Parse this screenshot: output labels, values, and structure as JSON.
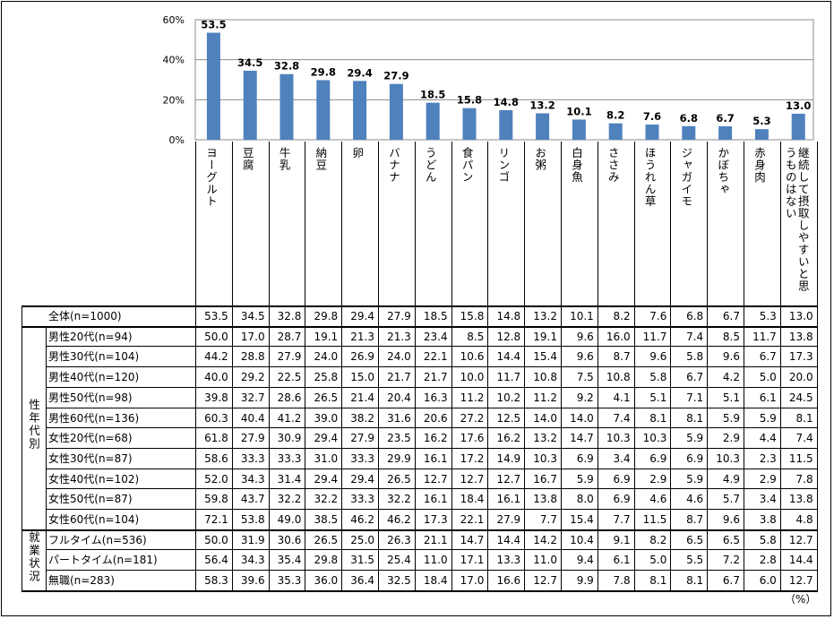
{
  "chart_data": {
    "type": "bar",
    "categories": [
      "ヨーグルト",
      "豆腐",
      "牛乳",
      "納豆",
      "卵",
      "バナナ",
      "うどん",
      "食パン",
      "リンゴ",
      "お粥",
      "白身魚",
      "ささみ",
      "ほうれん草",
      "ジャガイモ",
      "かぼちゃ",
      "赤身肉",
      "継続して摂取しやすいと思うものはない"
    ],
    "values": [
      53.5,
      34.5,
      32.8,
      29.8,
      29.4,
      27.9,
      18.5,
      15.8,
      14.8,
      13.2,
      10.1,
      8.2,
      7.6,
      6.8,
      6.7,
      5.3,
      13.0
    ],
    "value_labels": [
      "53.5",
      "34.5",
      "32.8",
      "29.8",
      "29.4",
      "27.9",
      "18.5",
      "15.8",
      "14.8",
      "13.2",
      "10.1",
      "8.2",
      "7.6",
      "6.8",
      "6.7",
      "5.3",
      "13.0"
    ],
    "yticks": [
      "0%",
      "20%",
      "40%",
      "60%"
    ],
    "ylim": [
      0,
      60
    ],
    "grid": true,
    "bar_color": "#4F81BD",
    "unit": "（%）",
    "table": {
      "total": {
        "label": "全体(n=1000)",
        "values": [
          "53.5",
          "34.5",
          "32.8",
          "29.8",
          "29.4",
          "27.9",
          "18.5",
          "15.8",
          "14.8",
          "13.2",
          "10.1",
          "8.2",
          "7.6",
          "6.8",
          "6.7",
          "5.3",
          "13.0"
        ]
      },
      "groups": [
        {
          "label": "性年代別",
          "rows": [
            {
              "label": "男性20代(n=94)",
              "values": [
                "50.0",
                "17.0",
                "28.7",
                "19.1",
                "21.3",
                "21.3",
                "23.4",
                "8.5",
                "12.8",
                "19.1",
                "9.6",
                "16.0",
                "11.7",
                "7.4",
                "8.5",
                "11.7",
                "13.8"
              ]
            },
            {
              "label": "男性30代(n=104)",
              "values": [
                "44.2",
                "28.8",
                "27.9",
                "24.0",
                "26.9",
                "24.0",
                "22.1",
                "10.6",
                "14.4",
                "15.4",
                "9.6",
                "8.7",
                "9.6",
                "5.8",
                "9.6",
                "6.7",
                "17.3"
              ]
            },
            {
              "label": "男性40代(n=120)",
              "values": [
                "40.0",
                "29.2",
                "22.5",
                "25.8",
                "15.0",
                "21.7",
                "21.7",
                "10.0",
                "11.7",
                "10.8",
                "7.5",
                "10.8",
                "5.8",
                "6.7",
                "4.2",
                "5.0",
                "20.0"
              ]
            },
            {
              "label": "男性50代(n=98)",
              "values": [
                "39.8",
                "32.7",
                "28.6",
                "26.5",
                "21.4",
                "20.4",
                "16.3",
                "11.2",
                "10.2",
                "11.2",
                "9.2",
                "4.1",
                "5.1",
                "7.1",
                "5.1",
                "6.1",
                "24.5"
              ]
            },
            {
              "label": "男性60代(n=136)",
              "values": [
                "60.3",
                "40.4",
                "41.2",
                "39.0",
                "38.2",
                "31.6",
                "20.6",
                "27.2",
                "12.5",
                "14.0",
                "14.0",
                "7.4",
                "8.1",
                "8.1",
                "5.9",
                "5.9",
                "8.1"
              ]
            },
            {
              "label": "女性20代(n=68)",
              "values": [
                "61.8",
                "27.9",
                "30.9",
                "29.4",
                "27.9",
                "23.5",
                "16.2",
                "17.6",
                "16.2",
                "13.2",
                "14.7",
                "10.3",
                "10.3",
                "5.9",
                "2.9",
                "4.4",
                "7.4"
              ]
            },
            {
              "label": "女性30代(n=87)",
              "values": [
                "58.6",
                "33.3",
                "33.3",
                "31.0",
                "33.3",
                "29.9",
                "16.1",
                "17.2",
                "14.9",
                "10.3",
                "6.9",
                "3.4",
                "6.9",
                "6.9",
                "10.3",
                "2.3",
                "11.5"
              ]
            },
            {
              "label": "女性40代(n=102)",
              "values": [
                "52.0",
                "34.3",
                "31.4",
                "29.4",
                "29.4",
                "26.5",
                "12.7",
                "12.7",
                "12.7",
                "16.7",
                "5.9",
                "6.9",
                "2.9",
                "5.9",
                "4.9",
                "2.9",
                "7.8"
              ]
            },
            {
              "label": "女性50代(n=87)",
              "values": [
                "59.8",
                "43.7",
                "32.2",
                "32.2",
                "33.3",
                "32.2",
                "16.1",
                "18.4",
                "16.1",
                "13.8",
                "8.0",
                "6.9",
                "4.6",
                "4.6",
                "5.7",
                "3.4",
                "13.8"
              ]
            },
            {
              "label": "女性60代(n=104)",
              "values": [
                "72.1",
                "53.8",
                "49.0",
                "38.5",
                "46.2",
                "46.2",
                "17.3",
                "22.1",
                "27.9",
                "7.7",
                "15.4",
                "7.7",
                "11.5",
                "8.7",
                "9.6",
                "3.8",
                "4.8"
              ]
            }
          ]
        },
        {
          "label": "就業状況",
          "rows": [
            {
              "label": "フルタイム(n=536)",
              "values": [
                "50.0",
                "31.9",
                "30.6",
                "26.5",
                "25.0",
                "26.3",
                "21.1",
                "14.7",
                "14.4",
                "14.2",
                "10.4",
                "9.1",
                "8.2",
                "6.5",
                "6.5",
                "5.8",
                "12.7"
              ]
            },
            {
              "label": "パートタイム(n=181)",
              "values": [
                "56.4",
                "34.3",
                "35.4",
                "29.8",
                "31.5",
                "25.4",
                "11.0",
                "17.1",
                "13.3",
                "11.0",
                "9.4",
                "6.1",
                "5.0",
                "5.5",
                "7.2",
                "2.8",
                "14.4"
              ]
            },
            {
              "label": "無職(n=283)",
              "values": [
                "58.3",
                "39.6",
                "35.3",
                "36.0",
                "36.4",
                "32.5",
                "18.4",
                "17.0",
                "16.6",
                "12.7",
                "9.9",
                "7.8",
                "8.1",
                "8.1",
                "6.7",
                "6.0",
                "12.7"
              ]
            }
          ]
        }
      ]
    }
  }
}
